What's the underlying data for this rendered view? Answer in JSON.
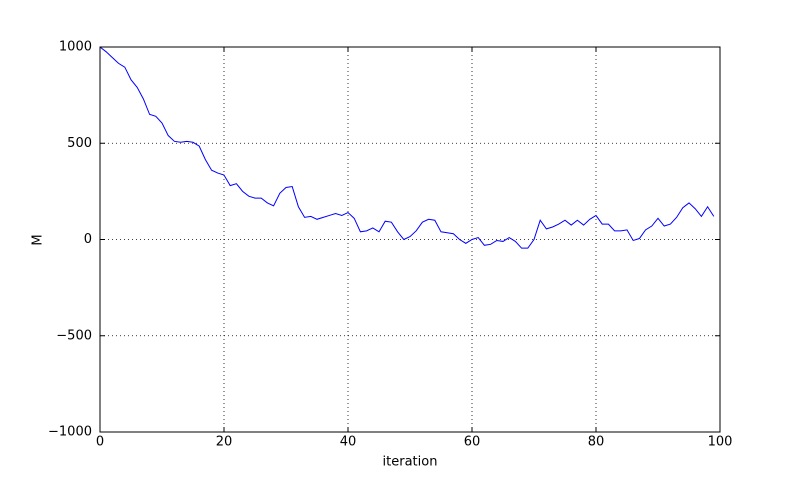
{
  "chart_data": {
    "type": "line",
    "x_label": "iteration",
    "y_label": "M",
    "x": [
      0,
      1,
      2,
      3,
      4,
      5,
      6,
      7,
      8,
      9,
      10,
      11,
      12,
      13,
      14,
      15,
      16,
      17,
      18,
      19,
      20,
      21,
      22,
      23,
      24,
      25,
      26,
      27,
      28,
      29,
      30,
      31,
      32,
      33,
      34,
      35,
      36,
      37,
      38,
      39,
      40,
      41,
      42,
      43,
      44,
      45,
      46,
      47,
      48,
      49,
      50,
      51,
      52,
      53,
      54,
      55,
      56,
      57,
      58,
      59,
      60,
      61,
      62,
      63,
      64,
      65,
      66,
      67,
      68,
      69,
      70,
      71,
      72,
      73,
      74,
      75,
      76,
      77,
      78,
      79,
      80,
      81,
      82,
      83,
      84,
      85,
      86,
      87,
      88,
      89,
      90,
      91,
      92,
      93,
      94,
      95,
      96,
      97,
      98,
      99
    ],
    "series": [
      {
        "name": "M",
        "color": "#0000ff",
        "values": [
          1000,
          975,
          945,
          915,
          895,
          830,
          790,
          730,
          650,
          640,
          605,
          540,
          510,
          505,
          510,
          505,
          485,
          415,
          360,
          345,
          335,
          280,
          290,
          250,
          225,
          215,
          215,
          190,
          175,
          240,
          270,
          275,
          170,
          115,
          120,
          105,
          115,
          125,
          135,
          125,
          140,
          110,
          40,
          45,
          60,
          40,
          95,
          90,
          40,
          0,
          15,
          45,
          90,
          105,
          100,
          40,
          35,
          30,
          0,
          -20,
          0,
          10,
          -30,
          -25,
          -5,
          -10,
          10,
          -10,
          -45,
          -45,
          0,
          100,
          55,
          65,
          80,
          100,
          75,
          100,
          75,
          105,
          125,
          80,
          80,
          45,
          45,
          50,
          -5,
          5,
          50,
          70,
          110,
          70,
          80,
          115,
          165,
          190,
          160,
          120,
          170,
          120
        ]
      }
    ],
    "xlim": [
      0,
      100
    ],
    "xticks": [
      0,
      20,
      40,
      60,
      80,
      100
    ],
    "ylim": [
      -1000,
      1000
    ],
    "yticks": [
      {
        "value": -1000,
        "label": "−1000"
      },
      {
        "value": -500,
        "label": "−500"
      },
      0,
      500,
      1000
    ],
    "grid": true
  }
}
